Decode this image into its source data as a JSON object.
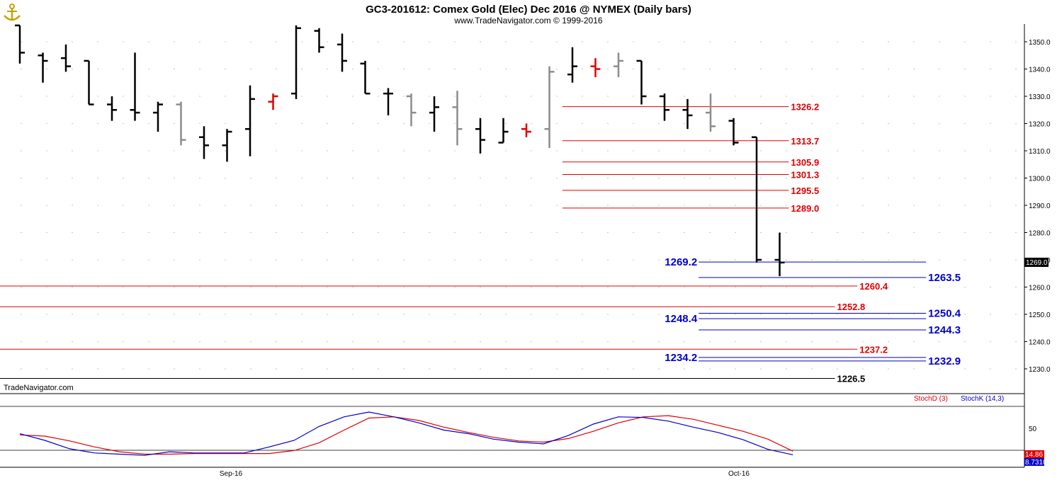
{
  "header": {
    "title": "GC3-201612:  Comex Gold (Elec) Dec 2016 @ NYMEX  (Daily bars)",
    "subtitle": "www.TradeNavigator.com © 1999-2016",
    "logo_icon": "anchor-logo-icon"
  },
  "watermark": "TradeNavigator.com",
  "price_axis": {
    "ticks": [
      "1350.0",
      "1340.0",
      "1330.0",
      "1320.0",
      "1310.0",
      "1300.0",
      "1290.0",
      "1280.0",
      "1270.0",
      "1260.0",
      "1250.0",
      "1240.0",
      "1230.0"
    ],
    "tick_values": [
      1350,
      1340,
      1330,
      1320,
      1310,
      1300,
      1290,
      1280,
      1270,
      1260,
      1250,
      1240,
      1230
    ],
    "last_price_label": "1269.0",
    "last_price": 1269.0
  },
  "date_axis": {
    "labels": [
      "Sep-16",
      "Oct-16"
    ]
  },
  "stoch_panel": {
    "legend_d": "StochD (3)",
    "legend_k": "StochK (14,3)",
    "tick_label": "50",
    "d_value_label": "14.86",
    "k_value_label": "8.7310",
    "color_d": "#e00000",
    "color_k": "#0000cc"
  },
  "chart_data": [
    {
      "type": "ohlc",
      "title": "GC3-201612:  Comex Gold (Elec) Dec 2016 @ NYMEX  (Daily bars)",
      "ylim": [
        1222,
        1356
      ],
      "bars": [
        {
          "idx": 0,
          "o": 1356,
          "h": 1356,
          "l": 1342,
          "c": 1346,
          "color": "black"
        },
        {
          "idx": 1,
          "o": 1345,
          "h": 1346,
          "l": 1335,
          "c": 1343,
          "color": "black"
        },
        {
          "idx": 2,
          "o": 1344,
          "h": 1349,
          "l": 1339,
          "c": 1341,
          "color": "black"
        },
        {
          "idx": 3,
          "o": 1343,
          "h": 1343,
          "l": 1327,
          "c": 1327,
          "color": "black"
        },
        {
          "idx": 4,
          "o": 1327,
          "h": 1330,
          "l": 1321,
          "c": 1325,
          "color": "black"
        },
        {
          "idx": 5,
          "o": 1325,
          "h": 1346,
          "l": 1321,
          "c": 1324,
          "color": "black"
        },
        {
          "idx": 6,
          "o": 1324,
          "h": 1328,
          "l": 1317,
          "c": 1327,
          "color": "black"
        },
        {
          "idx": 7,
          "o": 1327,
          "h": 1328,
          "l": 1312,
          "c": 1314,
          "color": "gray"
        },
        {
          "idx": 8,
          "o": 1315,
          "h": 1319,
          "l": 1307,
          "c": 1312,
          "color": "black"
        },
        {
          "idx": 9,
          "o": 1312,
          "h": 1318,
          "l": 1306,
          "c": 1317,
          "color": "black"
        },
        {
          "idx": 10,
          "o": 1318,
          "h": 1334,
          "l": 1308,
          "c": 1329,
          "color": "black"
        },
        {
          "idx": 11,
          "o": 1328,
          "h": 1331,
          "l": 1325,
          "c": 1330,
          "color": "red"
        },
        {
          "idx": 12,
          "o": 1331,
          "h": 1356,
          "l": 1329,
          "c": 1355,
          "color": "black"
        },
        {
          "idx": 13,
          "o": 1354,
          "h": 1355,
          "l": 1346,
          "c": 1348,
          "color": "black"
        },
        {
          "idx": 14,
          "o": 1349,
          "h": 1353,
          "l": 1339,
          "c": 1343,
          "color": "black"
        },
        {
          "idx": 15,
          "o": 1342,
          "h": 1343,
          "l": 1331,
          "c": 1331,
          "color": "black"
        },
        {
          "idx": 16,
          "o": 1331,
          "h": 1333,
          "l": 1323,
          "c": 1331,
          "color": "black"
        },
        {
          "idx": 17,
          "o": 1330,
          "h": 1331,
          "l": 1319,
          "c": 1324,
          "color": "gray"
        },
        {
          "idx": 18,
          "o": 1324,
          "h": 1330,
          "l": 1317,
          "c": 1326,
          "color": "black"
        },
        {
          "idx": 19,
          "o": 1326,
          "h": 1332,
          "l": 1312,
          "c": 1318,
          "color": "gray"
        },
        {
          "idx": 20,
          "o": 1318,
          "h": 1322,
          "l": 1309,
          "c": 1314,
          "color": "black"
        },
        {
          "idx": 21,
          "o": 1313,
          "h": 1322,
          "l": 1313,
          "c": 1317,
          "color": "black"
        },
        {
          "idx": 22,
          "o": 1318,
          "h": 1320,
          "l": 1315,
          "c": 1317,
          "color": "red"
        },
        {
          "idx": 23,
          "o": 1318,
          "h": 1341,
          "l": 1311,
          "c": 1339,
          "color": "gray"
        },
        {
          "idx": 24,
          "o": 1338,
          "h": 1348,
          "l": 1335,
          "c": 1341,
          "color": "black"
        },
        {
          "idx": 25,
          "o": 1341,
          "h": 1344,
          "l": 1337,
          "c": 1340,
          "color": "red"
        },
        {
          "idx": 26,
          "o": 1341,
          "h": 1346,
          "l": 1337,
          "c": 1343,
          "color": "gray"
        },
        {
          "idx": 27,
          "o": 1343,
          "h": 1343,
          "l": 1327,
          "c": 1330,
          "color": "black"
        },
        {
          "idx": 28,
          "o": 1330,
          "h": 1331,
          "l": 1321,
          "c": 1325,
          "color": "black"
        },
        {
          "idx": 29,
          "o": 1325,
          "h": 1329,
          "l": 1318,
          "c": 1323,
          "color": "black"
        },
        {
          "idx": 30,
          "o": 1324,
          "h": 1331,
          "l": 1317,
          "c": 1319,
          "color": "gray"
        },
        {
          "idx": 31,
          "o": 1321,
          "h": 1322,
          "l": 1312,
          "c": 1313,
          "color": "black"
        },
        {
          "idx": 32,
          "o": 1315,
          "h": 1315,
          "l": 1269,
          "c": 1270,
          "color": "black"
        },
        {
          "idx": 33,
          "o": 1270,
          "h": 1280,
          "l": 1264,
          "c": 1269,
          "color": "black"
        }
      ],
      "levels": [
        {
          "value": 1326.2,
          "label": "1326.2",
          "color": "#e00000",
          "x_from": 0.549,
          "x_to": 0.77,
          "label_side": "right"
        },
        {
          "value": 1313.7,
          "label": "1313.7",
          "color": "#e00000",
          "x_from": 0.549,
          "x_to": 0.77,
          "label_side": "right"
        },
        {
          "value": 1305.9,
          "label": "1305.9",
          "color": "#e00000",
          "x_from": 0.549,
          "x_to": 0.77,
          "label_side": "right"
        },
        {
          "value": 1301.3,
          "label": "1301.3",
          "color": "#e00000",
          "x_from": 0.549,
          "x_to": 0.77,
          "label_side": "right"
        },
        {
          "value": 1295.5,
          "label": "1295.5",
          "color": "#e00000",
          "x_from": 0.549,
          "x_to": 0.77,
          "label_side": "right"
        },
        {
          "value": 1289.0,
          "label": "1289.0",
          "color": "#e00000",
          "x_from": 0.549,
          "x_to": 0.77,
          "label_side": "right"
        },
        {
          "value": 1269.2,
          "label": "1269.2",
          "color": "#0000cc",
          "x_from": 0.682,
          "x_to": 0.904,
          "label_side": "left"
        },
        {
          "value": 1263.5,
          "label": "1263.5",
          "color": "#0000cc",
          "x_from": 0.682,
          "x_to": 0.904,
          "label_side": "right"
        },
        {
          "value": 1260.4,
          "label": "1260.4",
          "color": "#e00000",
          "x_from": 0.0,
          "x_to": 0.837,
          "label_side": "right"
        },
        {
          "value": 1252.8,
          "label": "1252.8",
          "color": "#e00000",
          "x_from": 0.0,
          "x_to": 0.815,
          "label_side": "right"
        },
        {
          "value": 1250.4,
          "label": "1250.4",
          "color": "#0000cc",
          "x_from": 0.682,
          "x_to": 0.904,
          "label_side": "right"
        },
        {
          "value": 1248.4,
          "label": "1248.4",
          "color": "#0000cc",
          "x_from": 0.682,
          "x_to": 0.904,
          "label_side": "left"
        },
        {
          "value": 1244.3,
          "label": "1244.3",
          "color": "#0000cc",
          "x_from": 0.682,
          "x_to": 0.904,
          "label_side": "right"
        },
        {
          "value": 1237.2,
          "label": "1237.2",
          "color": "#e00000",
          "x_from": 0.0,
          "x_to": 0.837,
          "label_side": "right"
        },
        {
          "value": 1234.2,
          "label": "1234.2",
          "color": "#0000cc",
          "x_from": 0.682,
          "x_to": 0.904,
          "label_side": "left"
        },
        {
          "value": 1232.9,
          "label": "1232.9",
          "color": "#0000cc",
          "x_from": 0.682,
          "x_to": 0.904,
          "label_side": "right"
        },
        {
          "value": 1226.5,
          "label": "1226.5",
          "color": "#000000",
          "x_from": 0.0,
          "x_to": 0.815,
          "label_side": "right"
        }
      ]
    },
    {
      "type": "line",
      "ylim": [
        0,
        100
      ],
      "series": [
        {
          "name": "StochD (3)",
          "values": [
            42,
            40,
            32,
            22,
            14,
            10,
            10,
            11,
            11,
            11,
            11,
            16,
            29,
            50,
            70,
            72,
            66,
            55,
            46,
            38,
            32,
            30,
            36,
            48,
            62,
            72,
            74,
            68,
            58,
            48,
            35,
            15
          ]
        },
        {
          "name": "StochK (14,3)",
          "values": [
            44,
            33,
            19,
            12,
            10,
            8,
            14,
            12,
            12,
            12,
            22,
            33,
            56,
            72,
            80,
            72,
            62,
            50,
            44,
            35,
            30,
            27,
            41,
            60,
            72,
            71,
            65,
            55,
            46,
            34,
            18,
            9
          ]
        }
      ]
    }
  ]
}
